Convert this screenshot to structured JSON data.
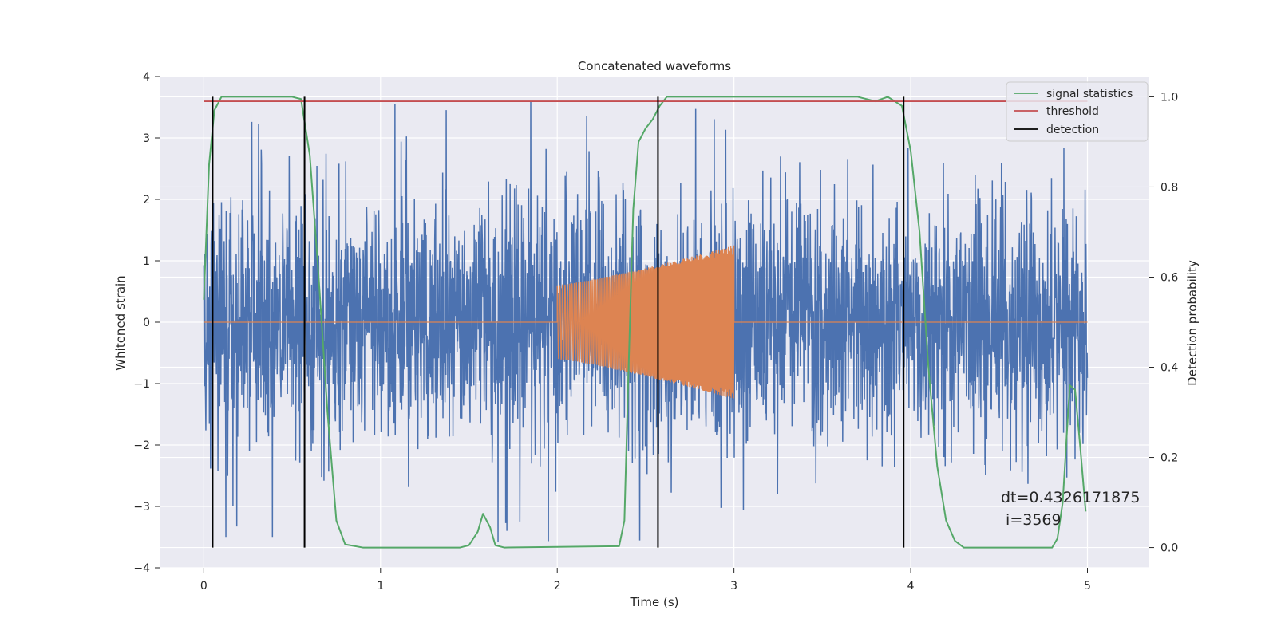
{
  "chart_data": {
    "type": "line",
    "title": "Concatenated waveforms",
    "xlabel": "Time (s)",
    "ylabel": "Whitened strain",
    "ylabel_right": "Detection probability",
    "xlim": [
      -0.25,
      5.35
    ],
    "ylim": [
      -4,
      4
    ],
    "ylim_right": [
      -0.045,
      1.045
    ],
    "xticks": [
      0,
      1,
      2,
      3,
      4,
      5
    ],
    "yticks": [
      -4,
      -3,
      -2,
      -1,
      0,
      1,
      2,
      3,
      4
    ],
    "yticks_right": [
      0.0,
      0.2,
      0.4,
      0.6,
      0.8,
      1.0
    ],
    "xtick_labels": [
      "0",
      "1",
      "2",
      "3",
      "4",
      "5"
    ],
    "ytick_labels": [
      "−4",
      "−3",
      "−2",
      "−1",
      "0",
      "1",
      "2",
      "3",
      "4"
    ],
    "ytick_right_labels": [
      "0.0",
      "0.2",
      "0.4",
      "0.6",
      "0.8",
      "1.0"
    ],
    "grid": true,
    "legend_position": "top-right",
    "legend": [
      "signal statistics",
      "threshold",
      "detection"
    ],
    "annotation": [
      "dt=0.4326171875",
      " i=3569"
    ],
    "series": [
      {
        "name": "",
        "axis": "left",
        "kind": "noise",
        "color": "#4c72b0",
        "x_range": [
          0,
          5
        ],
        "typical_range": [
          -2.3,
          2.3
        ],
        "max_peak": 3.65,
        "min_peak": -3.6
      },
      {
        "name": "",
        "axis": "left",
        "kind": "chirp",
        "color": "#dd8452",
        "x_range": [
          0,
          5
        ],
        "zero_outside": true,
        "burst_x_range": [
          2.0,
          3.0
        ],
        "amplitude_start": 0.6,
        "amplitude_end": 1.25
      },
      {
        "name": "signal statistics",
        "axis": "right",
        "color": "#55a868",
        "points": [
          [
            0,
            0.55
          ],
          [
            0.03,
            0.85
          ],
          [
            0.06,
            0.97
          ],
          [
            0.1,
            1.0
          ],
          [
            0.5,
            1.0
          ],
          [
            0.55,
            0.995
          ],
          [
            0.6,
            0.87
          ],
          [
            0.65,
            0.6
          ],
          [
            0.7,
            0.3
          ],
          [
            0.75,
            0.06
          ],
          [
            0.8,
            0.007
          ],
          [
            0.9,
            0.0
          ],
          [
            1.45,
            0.0
          ],
          [
            1.5,
            0.005
          ],
          [
            1.55,
            0.035
          ],
          [
            1.58,
            0.075
          ],
          [
            1.62,
            0.045
          ],
          [
            1.65,
            0.005
          ],
          [
            1.7,
            0.0
          ],
          [
            2.35,
            0.003
          ],
          [
            2.38,
            0.06
          ],
          [
            2.4,
            0.35
          ],
          [
            2.43,
            0.75
          ],
          [
            2.46,
            0.9
          ],
          [
            2.5,
            0.93
          ],
          [
            2.54,
            0.95
          ],
          [
            2.58,
            0.98
          ],
          [
            2.62,
            1.0
          ],
          [
            3.7,
            1.0
          ],
          [
            3.8,
            0.99
          ],
          [
            3.87,
            1.0
          ],
          [
            3.95,
            0.98
          ],
          [
            4.0,
            0.88
          ],
          [
            4.05,
            0.7
          ],
          [
            4.1,
            0.4
          ],
          [
            4.15,
            0.18
          ],
          [
            4.2,
            0.06
          ],
          [
            4.25,
            0.015
          ],
          [
            4.3,
            0.0
          ],
          [
            4.8,
            0.0
          ],
          [
            4.83,
            0.02
          ],
          [
            4.86,
            0.1
          ],
          [
            4.9,
            0.36
          ],
          [
            4.93,
            0.35
          ],
          [
            4.96,
            0.22
          ],
          [
            4.99,
            0.08
          ]
        ]
      },
      {
        "name": "threshold",
        "axis": "right",
        "color": "#c44e52",
        "value": 0.99,
        "x_range": [
          0,
          5
        ]
      },
      {
        "name": "detection",
        "axis": "right",
        "color": "#000000",
        "x": [
          0.05,
          0.57,
          2.57,
          3.96
        ],
        "y_range": [
          0,
          1
        ]
      }
    ]
  }
}
